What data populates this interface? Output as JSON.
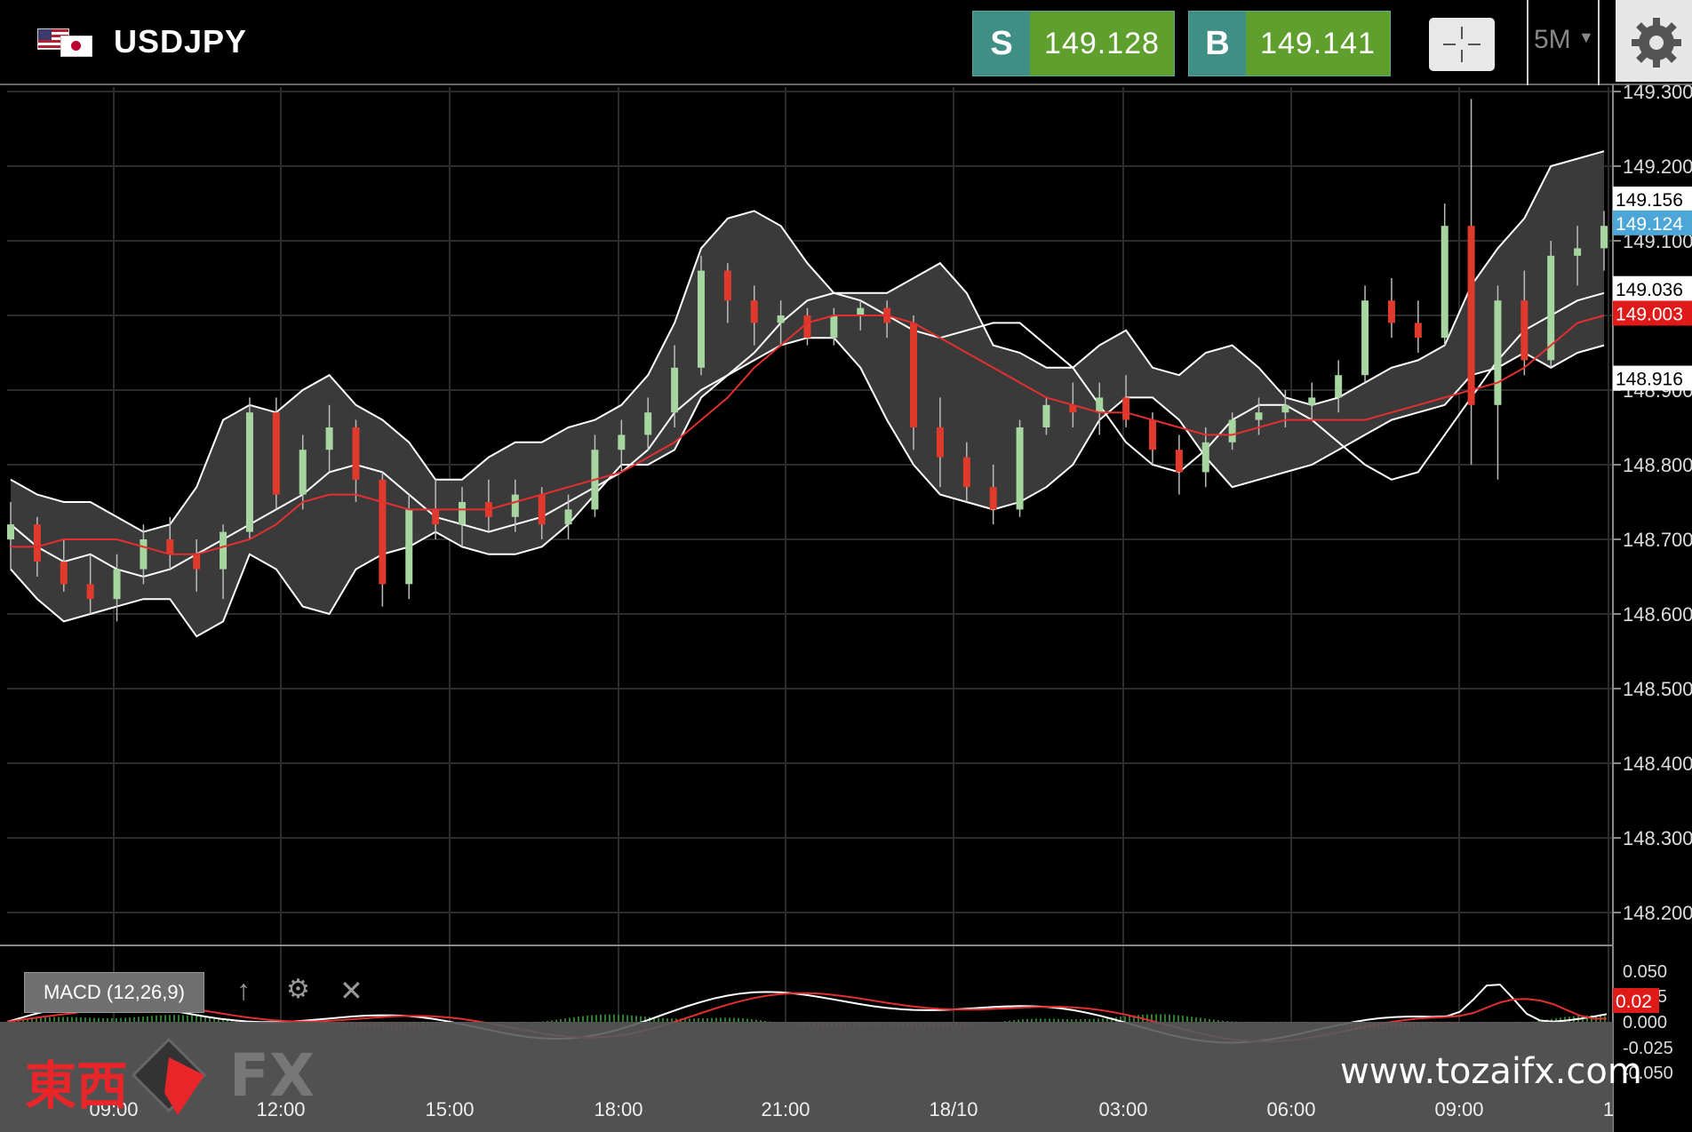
{
  "header": {
    "symbol": "USDJPY",
    "sell_label": "S",
    "sell_price": "149.128",
    "buy_label": "B",
    "buy_price": "149.141",
    "timeframe": "5M"
  },
  "macd": {
    "label": "MACD (12,26,9)",
    "axis_ticks": [
      "0.050",
      "0.025",
      "0.000",
      "-0.025",
      "-0.050"
    ],
    "value_badge": "0.02"
  },
  "watermark": {
    "chinese": "東西",
    "fx": "FX",
    "url": "www.tozaifx.com"
  },
  "colors": {
    "background": "#000000",
    "bull_candle": "#a6d5a0",
    "bear_candle": "#e03a2c",
    "bollinger_fill": "#3a3a3a",
    "bollinger_line": "#ffffff",
    "ma_line": "#e32f2f",
    "sell_tag": "#3f8f86",
    "price_field": "#5f9f2e",
    "badge_blue": "#4ca6d8",
    "badge_red": "#e01919"
  },
  "chart_data": {
    "type": "candlestick",
    "title": "USDJPY",
    "timeframe": "5M",
    "y_axis_ticks": [
      "149.300",
      "149.200",
      "149.100",
      "149.000",
      "148.900",
      "148.800",
      "148.700",
      "148.600",
      "148.500",
      "148.400",
      "148.300",
      "148.200"
    ],
    "ylim": [
      148.15,
      149.31
    ],
    "x_axis_ticks": [
      "09:00",
      "12:00",
      "15:00",
      "18:00",
      "21:00",
      "18/10",
      "03:00",
      "06:00",
      "09:00",
      "1"
    ],
    "price_badges": [
      {
        "value": "149.156",
        "style": "white"
      },
      {
        "value": "149.124",
        "style": "blue"
      },
      {
        "value": "149.036",
        "style": "white"
      },
      {
        "value": "149.003",
        "style": "red"
      },
      {
        "value": "148.916",
        "style": "white"
      }
    ],
    "bollinger_middle": [
      148.72,
      148.69,
      148.67,
      148.68,
      148.66,
      148.65,
      148.66,
      148.68,
      148.7,
      148.72,
      148.74,
      148.76,
      148.79,
      148.8,
      148.79,
      148.76,
      148.73,
      148.72,
      148.71,
      148.72,
      148.73,
      148.75,
      148.77,
      148.79,
      148.82,
      148.87,
      148.9,
      148.92,
      148.95,
      148.99,
      149.02,
      149.03,
      149.02,
      149.0,
      148.98,
      148.97,
      148.98,
      148.99,
      148.99,
      148.96,
      148.93,
      148.88,
      148.83,
      148.8,
      148.79,
      148.82,
      148.86,
      148.88,
      148.88,
      148.86,
      148.83,
      148.8,
      148.78,
      148.79,
      148.84,
      148.89,
      148.94,
      148.98,
      149.0,
      149.02,
      149.03
    ],
    "bollinger_upper": [
      148.78,
      148.76,
      148.75,
      148.75,
      148.73,
      148.71,
      148.72,
      148.77,
      148.86,
      148.88,
      148.87,
      148.9,
      148.92,
      148.88,
      148.86,
      148.83,
      148.78,
      148.78,
      148.81,
      148.83,
      148.83,
      148.85,
      148.86,
      148.88,
      148.92,
      148.99,
      149.09,
      149.13,
      149.14,
      149.12,
      149.07,
      149.03,
      149.03,
      149.03,
      149.05,
      149.07,
      149.03,
      148.96,
      148.95,
      148.93,
      148.93,
      148.96,
      148.98,
      148.93,
      148.92,
      148.95,
      148.96,
      148.93,
      148.89,
      148.88,
      148.89,
      148.91,
      148.93,
      148.94,
      148.96,
      149.04,
      149.09,
      149.13,
      149.2,
      149.21,
      149.22
    ],
    "bollinger_lower": [
      148.66,
      148.62,
      148.59,
      148.6,
      148.61,
      148.62,
      148.62,
      148.57,
      148.59,
      148.68,
      148.66,
      148.61,
      148.6,
      148.66,
      148.68,
      148.69,
      148.71,
      148.69,
      148.68,
      148.68,
      148.69,
      148.72,
      148.76,
      148.8,
      148.8,
      148.82,
      148.89,
      148.92,
      148.94,
      148.96,
      148.97,
      148.97,
      148.93,
      148.86,
      148.8,
      148.76,
      148.75,
      148.74,
      148.75,
      148.77,
      148.8,
      148.86,
      148.89,
      148.89,
      148.86,
      148.81,
      148.77,
      148.78,
      148.79,
      148.8,
      148.82,
      148.84,
      148.86,
      148.87,
      148.88,
      148.92,
      148.93,
      148.95,
      148.93,
      148.95,
      148.96
    ],
    "moving_average": [
      148.69,
      148.69,
      148.7,
      148.7,
      148.7,
      148.69,
      148.68,
      148.68,
      148.69,
      148.7,
      148.72,
      148.75,
      148.76,
      148.76,
      148.75,
      148.74,
      148.74,
      148.74,
      148.74,
      148.75,
      148.76,
      148.77,
      148.78,
      148.79,
      148.81,
      148.83,
      148.86,
      148.89,
      148.93,
      148.96,
      148.99,
      149.0,
      149.0,
      149.0,
      148.99,
      148.97,
      148.95,
      148.93,
      148.91,
      148.89,
      148.88,
      148.87,
      148.87,
      148.86,
      148.85,
      148.84,
      148.84,
      148.85,
      148.86,
      148.86,
      148.86,
      148.86,
      148.87,
      148.88,
      148.89,
      148.9,
      148.91,
      148.93,
      148.96,
      148.99,
      149.0
    ],
    "candles": [
      {
        "o": 148.7,
        "h": 148.75,
        "l": 148.66,
        "c": 148.72
      },
      {
        "o": 148.72,
        "h": 148.73,
        "l": 148.65,
        "c": 148.67
      },
      {
        "o": 148.67,
        "h": 148.7,
        "l": 148.63,
        "c": 148.64
      },
      {
        "o": 148.64,
        "h": 148.68,
        "l": 148.6,
        "c": 148.62
      },
      {
        "o": 148.62,
        "h": 148.68,
        "l": 148.59,
        "c": 148.66
      },
      {
        "o": 148.66,
        "h": 148.72,
        "l": 148.64,
        "c": 148.7
      },
      {
        "o": 148.7,
        "h": 148.73,
        "l": 148.66,
        "c": 148.68
      },
      {
        "o": 148.68,
        "h": 148.7,
        "l": 148.63,
        "c": 148.66
      },
      {
        "o": 148.66,
        "h": 148.72,
        "l": 148.62,
        "c": 148.71
      },
      {
        "o": 148.71,
        "h": 148.89,
        "l": 148.7,
        "c": 148.87
      },
      {
        "o": 148.87,
        "h": 148.89,
        "l": 148.74,
        "c": 148.76
      },
      {
        "o": 148.76,
        "h": 148.84,
        "l": 148.74,
        "c": 148.82
      },
      {
        "o": 148.82,
        "h": 148.88,
        "l": 148.79,
        "c": 148.85
      },
      {
        "o": 148.85,
        "h": 148.86,
        "l": 148.75,
        "c": 148.78
      },
      {
        "o": 148.78,
        "h": 148.79,
        "l": 148.61,
        "c": 148.64
      },
      {
        "o": 148.64,
        "h": 148.76,
        "l": 148.62,
        "c": 148.74
      },
      {
        "o": 148.74,
        "h": 148.78,
        "l": 148.7,
        "c": 148.72
      },
      {
        "o": 148.72,
        "h": 148.77,
        "l": 148.69,
        "c": 148.75
      },
      {
        "o": 148.75,
        "h": 148.78,
        "l": 148.71,
        "c": 148.73
      },
      {
        "o": 148.73,
        "h": 148.78,
        "l": 148.71,
        "c": 148.76
      },
      {
        "o": 148.76,
        "h": 148.77,
        "l": 148.7,
        "c": 148.72
      },
      {
        "o": 148.72,
        "h": 148.76,
        "l": 148.7,
        "c": 148.74
      },
      {
        "o": 148.74,
        "h": 148.84,
        "l": 148.73,
        "c": 148.82
      },
      {
        "o": 148.82,
        "h": 148.86,
        "l": 148.79,
        "c": 148.84
      },
      {
        "o": 148.84,
        "h": 148.89,
        "l": 148.82,
        "c": 148.87
      },
      {
        "o": 148.87,
        "h": 148.96,
        "l": 148.85,
        "c": 148.93
      },
      {
        "o": 148.93,
        "h": 149.08,
        "l": 148.92,
        "c": 149.06
      },
      {
        "o": 149.06,
        "h": 149.07,
        "l": 148.99,
        "c": 149.02
      },
      {
        "o": 149.02,
        "h": 149.04,
        "l": 148.96,
        "c": 148.99
      },
      {
        "o": 148.99,
        "h": 149.02,
        "l": 148.96,
        "c": 149.0
      },
      {
        "o": 149.0,
        "h": 149.01,
        "l": 148.96,
        "c": 148.97
      },
      {
        "o": 148.97,
        "h": 149.01,
        "l": 148.96,
        "c": 149.0
      },
      {
        "o": 149.0,
        "h": 149.02,
        "l": 148.98,
        "c": 149.01
      },
      {
        "o": 149.01,
        "h": 149.02,
        "l": 148.97,
        "c": 148.99
      },
      {
        "o": 148.99,
        "h": 149.0,
        "l": 148.82,
        "c": 148.85
      },
      {
        "o": 148.85,
        "h": 148.89,
        "l": 148.77,
        "c": 148.81
      },
      {
        "o": 148.81,
        "h": 148.83,
        "l": 148.75,
        "c": 148.77
      },
      {
        "o": 148.77,
        "h": 148.8,
        "l": 148.72,
        "c": 148.74
      },
      {
        "o": 148.74,
        "h": 148.86,
        "l": 148.73,
        "c": 148.85
      },
      {
        "o": 148.85,
        "h": 148.89,
        "l": 148.84,
        "c": 148.88
      },
      {
        "o": 148.88,
        "h": 148.91,
        "l": 148.85,
        "c": 148.87
      },
      {
        "o": 148.87,
        "h": 148.91,
        "l": 148.84,
        "c": 148.89
      },
      {
        "o": 148.89,
        "h": 148.92,
        "l": 148.85,
        "c": 148.86
      },
      {
        "o": 148.86,
        "h": 148.87,
        "l": 148.8,
        "c": 148.82
      },
      {
        "o": 148.82,
        "h": 148.84,
        "l": 148.76,
        "c": 148.79
      },
      {
        "o": 148.79,
        "h": 148.85,
        "l": 148.77,
        "c": 148.83
      },
      {
        "o": 148.83,
        "h": 148.87,
        "l": 148.82,
        "c": 148.86
      },
      {
        "o": 148.86,
        "h": 148.89,
        "l": 148.84,
        "c": 148.87
      },
      {
        "o": 148.87,
        "h": 148.9,
        "l": 148.85,
        "c": 148.88
      },
      {
        "o": 148.88,
        "h": 148.91,
        "l": 148.86,
        "c": 148.89
      },
      {
        "o": 148.89,
        "h": 148.94,
        "l": 148.87,
        "c": 148.92
      },
      {
        "o": 148.92,
        "h": 149.04,
        "l": 148.91,
        "c": 149.02
      },
      {
        "o": 149.02,
        "h": 149.05,
        "l": 148.97,
        "c": 148.99
      },
      {
        "o": 148.99,
        "h": 149.02,
        "l": 148.95,
        "c": 148.97
      },
      {
        "o": 148.97,
        "h": 149.15,
        "l": 148.96,
        "c": 149.12
      },
      {
        "o": 149.12,
        "h": 149.29,
        "l": 148.8,
        "c": 148.88
      },
      {
        "o": 148.88,
        "h": 149.04,
        "l": 148.78,
        "c": 149.02
      },
      {
        "o": 149.02,
        "h": 149.06,
        "l": 148.92,
        "c": 148.94
      },
      {
        "o": 148.94,
        "h": 149.1,
        "l": 148.93,
        "c": 149.08
      },
      {
        "o": 149.08,
        "h": 149.12,
        "l": 149.04,
        "c": 149.09
      },
      {
        "o": 149.09,
        "h": 149.14,
        "l": 149.06,
        "c": 149.12
      }
    ]
  }
}
